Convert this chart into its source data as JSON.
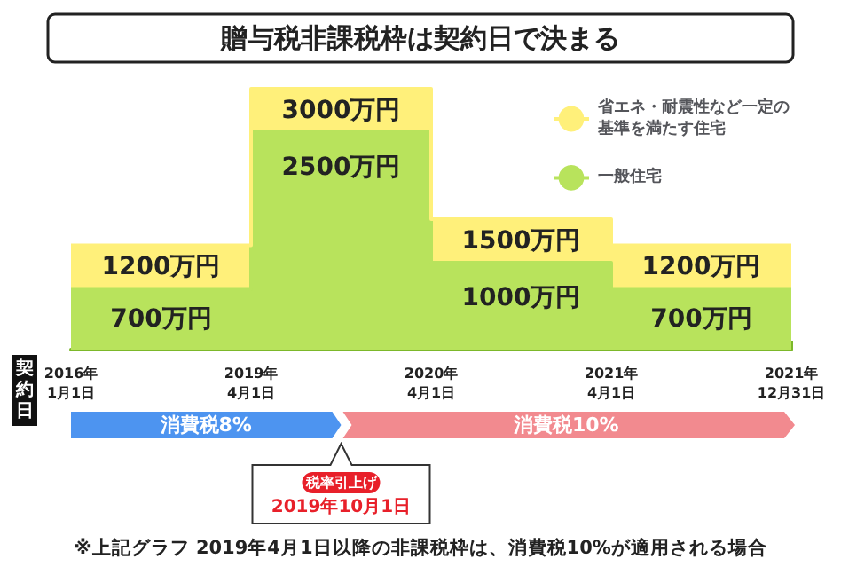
{
  "chart_data": {
    "type": "area",
    "title": "贈与税非課税枠は契約日で決まる",
    "xlabel": "契約日",
    "categories": [
      "2016年\n1月1日",
      "2019年\n4月1日",
      "2020年\n4月1日",
      "2021年\n4月1日",
      "2021年\n12月31日"
    ],
    "series": [
      {
        "name": "一般住宅",
        "color": "#b8e35c",
        "values": [
          700,
          2500,
          1000,
          700,
          700
        ],
        "value_labels": [
          "700万円",
          "2500万円",
          "1000万円",
          "700万円",
          null
        ]
      },
      {
        "name": "省エネ・耐震性など一定の基準を満たす住宅",
        "color": "#fff07a",
        "values": [
          500,
          500,
          500,
          500,
          500
        ]
      }
    ],
    "totals": [
      "1200万円",
      "3000万円",
      "1500万円",
      "1200万円",
      null
    ],
    "stacked": true,
    "marker": "none",
    "grid": false,
    "legend": "top right",
    "tick_labels": "x",
    "annotations": [
      "消費税8%",
      "消費税10%",
      "税率引上げ",
      "2019年10月1日",
      "※上記グラフ 2019年4月1日以降の非課税枠は、消費税10%が適用される場合"
    ]
  }
}
